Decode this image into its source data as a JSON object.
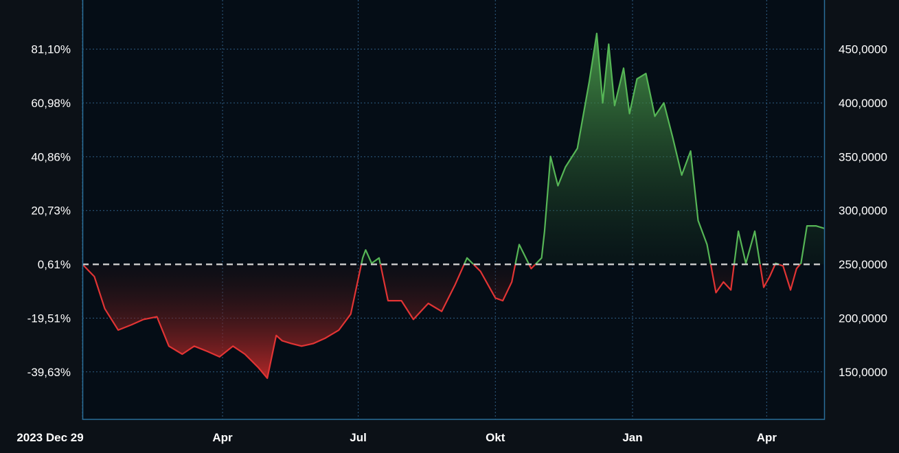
{
  "colors": {
    "background": "#0c1117",
    "plot_background": "#050d16",
    "frame": "#2a6f9a",
    "grid": "#2f5f86",
    "positive": "#56b656",
    "negative": "#e23434",
    "baseline": "#c8c8c8",
    "text": "#ffffff"
  },
  "chart_data": {
    "type": "area",
    "title": "",
    "xlabel": "",
    "ylabel": "",
    "x_ticks": [
      "2023 Dec 29",
      "Apr",
      "Jul",
      "Okt",
      "Jan",
      "Apr"
    ],
    "x_range": [
      "2023-12-29",
      "2025-05-10"
    ],
    "left_axis_ticks": [
      "81,10%",
      "60,98%",
      "40,86%",
      "20,73%",
      "0,61%",
      "-19,51%",
      "-39,63%"
    ],
    "left_axis_values": [
      81.1,
      60.98,
      40.86,
      20.73,
      0.61,
      -19.51,
      -39.63
    ],
    "right_axis_ticks": [
      "450,0000",
      "400,0000",
      "350,0000",
      "300,0000",
      "250,0000",
      "200,0000",
      "150,0000"
    ],
    "right_axis_values": [
      450,
      400,
      350,
      300,
      250,
      200,
      150
    ],
    "baseline_value": 0.61,
    "baseline_style": "dashed",
    "ylim_percent": [
      -57.4,
      99.5
    ],
    "grid": true,
    "legend": "none",
    "series": [
      {
        "values_unit": "percent",
        "fill": "positive above baseline, negative below baseline",
        "x": [
          "2023-12-29",
          "2024-01-06",
          "2024-01-13",
          "2024-01-22",
          "2024-01-31",
          "2024-02-08",
          "2024-02-17",
          "2024-02-25",
          "2024-03-05",
          "2024-03-13",
          "2024-03-22",
          "2024-03-30",
          "2024-04-08",
          "2024-04-16",
          "2024-04-25",
          "2024-05-01",
          "2024-05-07",
          "2024-05-11",
          "2024-05-17",
          "2024-05-24",
          "2024-06-01",
          "2024-06-09",
          "2024-06-18",
          "2024-06-26",
          "2024-07-04",
          "2024-07-06",
          "2024-07-10",
          "2024-07-15",
          "2024-07-21",
          "2024-07-30",
          "2024-08-07",
          "2024-08-17",
          "2024-08-26",
          "2024-09-04",
          "2024-09-12",
          "2024-09-21",
          "2024-10-01",
          "2024-10-06",
          "2024-10-12",
          "2024-10-17",
          "2024-10-25",
          "2024-11-01",
          "2024-11-03",
          "2024-11-07",
          "2024-11-12",
          "2024-11-17",
          "2024-11-25",
          "2024-12-03",
          "2024-12-08",
          "2024-12-12",
          "2024-12-16",
          "2024-12-20",
          "2024-12-26",
          "2024-12-30",
          "2025-01-04",
          "2025-01-10",
          "2025-01-16",
          "2025-01-22",
          "2025-01-28",
          "2025-02-03",
          "2025-02-09",
          "2025-02-14",
          "2025-02-20",
          "2025-02-26",
          "2025-03-03",
          "2025-03-08",
          "2025-03-13",
          "2025-03-18",
          "2025-03-24",
          "2025-03-30",
          "2025-04-03",
          "2025-04-07",
          "2025-04-12",
          "2025-04-17",
          "2025-04-21",
          "2025-04-24",
          "2025-04-28",
          "2025-05-04",
          "2025-05-10"
        ],
        "values": [
          0.6,
          -4.0,
          -16.0,
          -24.0,
          -22.0,
          -20.0,
          -19.0,
          -30.0,
          -33.0,
          -30.0,
          -32.0,
          -34.0,
          -30.0,
          -33.0,
          -38.0,
          -42.0,
          -26.0,
          -28.0,
          -29.0,
          -30.0,
          -29.0,
          -27.0,
          -24.0,
          -18.0,
          3.0,
          6.0,
          1.0,
          3.0,
          -13.0,
          -13.0,
          -20.0,
          -14.0,
          -17.0,
          -7.0,
          3.0,
          -2.0,
          -12.0,
          -13.0,
          -6.0,
          8.0,
          -1.0,
          3.0,
          13.0,
          41.0,
          30.0,
          37.0,
          44.0,
          69.0,
          87.0,
          61.0,
          83.0,
          60.0,
          74.0,
          57.0,
          70.0,
          72.0,
          56.0,
          61.0,
          48.0,
          34.0,
          43.0,
          17.0,
          8.0,
          -10.0,
          -6.0,
          -9.0,
          13.0,
          1.0,
          13.0,
          -8.0,
          -4.0,
          1.0,
          0.0,
          -9.0,
          -1.0,
          1.0,
          15.0,
          15.0,
          14.0
        ]
      }
    ]
  }
}
